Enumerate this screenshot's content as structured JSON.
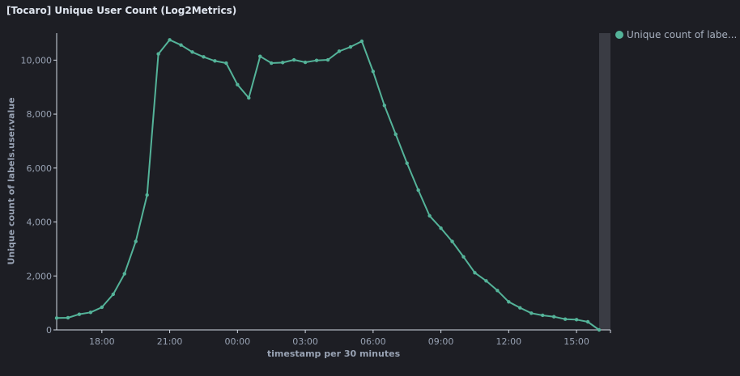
{
  "panel": {
    "title": "[Tocaro] Unique User Count (Log2Metrics)"
  },
  "legend": {
    "label": "Unique count of labe...",
    "color": "#54b399"
  },
  "chart_data": {
    "type": "line",
    "xlabel": "timestamp per 30 minutes",
    "ylabel": "Unique count of labels.user.value",
    "x_tick_labels": [
      "18:00",
      "21:00",
      "00:00",
      "03:00",
      "06:00",
      "09:00",
      "12:00",
      "15:00"
    ],
    "y_tick_labels": [
      "0",
      "2,000",
      "4,000",
      "6,000",
      "8,000",
      "10,000"
    ],
    "ylim": [
      0,
      11000
    ],
    "xlim": [
      "16:00",
      "16:30 (next day)"
    ],
    "grid": false,
    "legend_position": "right",
    "x": [
      "16:00",
      "16:30",
      "17:00",
      "17:30",
      "18:00",
      "18:30",
      "19:00",
      "19:30",
      "20:00",
      "20:30",
      "21:00",
      "21:30",
      "22:00",
      "22:30",
      "23:00",
      "23:30",
      "00:00",
      "00:30",
      "01:00",
      "01:30",
      "02:00",
      "02:30",
      "03:00",
      "03:30",
      "04:00",
      "04:30",
      "05:00",
      "05:30",
      "06:00",
      "06:30",
      "07:00",
      "07:30",
      "08:00",
      "08:30",
      "09:00",
      "09:30",
      "10:00",
      "10:30",
      "11:00",
      "11:30",
      "12:00",
      "12:30",
      "13:00",
      "13:30",
      "14:00",
      "14:30",
      "15:00",
      "15:30",
      "16:00"
    ],
    "series": [
      {
        "name": "Unique count of labels.user.value",
        "color": "#54b399",
        "values": [
          440,
          450,
          580,
          650,
          840,
          1320,
          2080,
          3280,
          5000,
          10230,
          10750,
          10560,
          10300,
          10120,
          9970,
          9890,
          9090,
          8600,
          10140,
          9890,
          9910,
          10010,
          9920,
          9990,
          10010,
          10330,
          10490,
          10700,
          9580,
          8320,
          7250,
          6180,
          5180,
          4230,
          3770,
          3280,
          2710,
          2120,
          1820,
          1460,
          1040,
          820,
          620,
          540,
          490,
          400,
          380,
          300,
          0
        ]
      }
    ]
  }
}
